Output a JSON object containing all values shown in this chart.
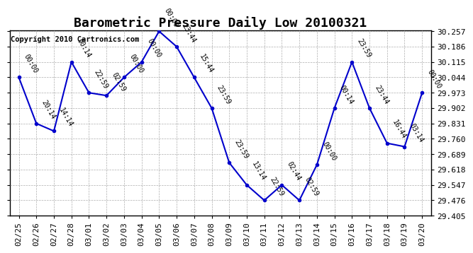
{
  "title": "Barometric Pressure Daily Low 20100321",
  "copyright": "Copyright 2010 Cartronics.com",
  "x_labels": [
    "02/25",
    "02/26",
    "02/27",
    "02/28",
    "03/01",
    "03/02",
    "03/03",
    "03/04",
    "03/05",
    "03/06",
    "03/07",
    "03/08",
    "03/09",
    "03/10",
    "03/11",
    "03/12",
    "03/13",
    "03/14",
    "03/15",
    "03/16",
    "03/17",
    "03/18",
    "03/19",
    "03/20"
  ],
  "y_values": [
    30.044,
    29.831,
    29.796,
    30.115,
    29.973,
    29.96,
    30.044,
    30.115,
    30.257,
    30.186,
    30.044,
    29.902,
    29.65,
    29.547,
    29.476,
    29.547,
    29.476,
    29.64,
    29.902,
    30.115,
    29.902,
    29.74,
    29.724,
    29.973
  ],
  "annotations": [
    "00:00",
    "20:14",
    "14:14",
    "00:14",
    "22:59",
    "02:59",
    "00:00",
    "00:00",
    "00:00",
    "23:44",
    "15:44",
    "23:59",
    "23:59",
    "13:14",
    "22:59",
    "02:44",
    "02:59",
    "00:00",
    "00:14",
    "23:59",
    "23:44",
    "16:44",
    "03:14",
    "00:00"
  ],
  "ylim_min": 29.405,
  "ylim_max": 30.257,
  "yticks": [
    29.405,
    29.476,
    29.547,
    29.618,
    29.689,
    29.76,
    29.831,
    29.902,
    29.973,
    30.044,
    30.115,
    30.186,
    30.257
  ],
  "line_color": "#0000cc",
  "marker_color": "#0000cc",
  "bg_color": "#ffffff",
  "grid_color": "#999999",
  "title_fontsize": 13,
  "annotation_fontsize": 7,
  "copyright_fontsize": 7.5,
  "tick_fontsize": 8
}
